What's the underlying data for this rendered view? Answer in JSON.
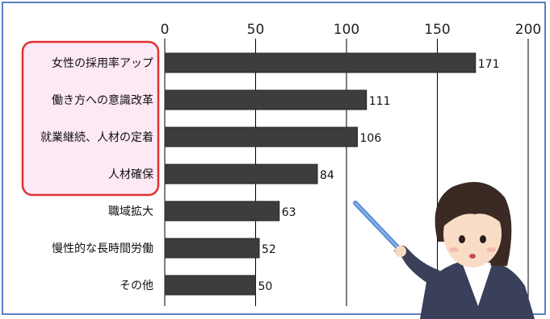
{
  "chart_data": {
    "type": "bar",
    "orientation": "horizontal",
    "title": "",
    "xlabel": "",
    "ylabel": "",
    "categories": [
      "女性の採用率アップ",
      "働き方への意識改革",
      "就業継続、人材の定着",
      "人材確保",
      "職域拡大",
      "慢性的な長時間労働",
      "その他"
    ],
    "values": [
      171,
      111,
      106,
      84,
      63,
      52,
      50
    ],
    "xlim": [
      0,
      200
    ],
    "xticks": [
      "0",
      "50",
      "100",
      "150",
      "200"
    ],
    "grid": true,
    "highlighted_categories": [
      0,
      1,
      2,
      3
    ]
  },
  "colors": {
    "bar": "#3d3d3d",
    "highlight_fill": "#fde8f6",
    "highlight_border": "#e03030",
    "frame": "#5b7fc0",
    "grid": "#000000"
  },
  "illustration": "presenter-with-pointer"
}
